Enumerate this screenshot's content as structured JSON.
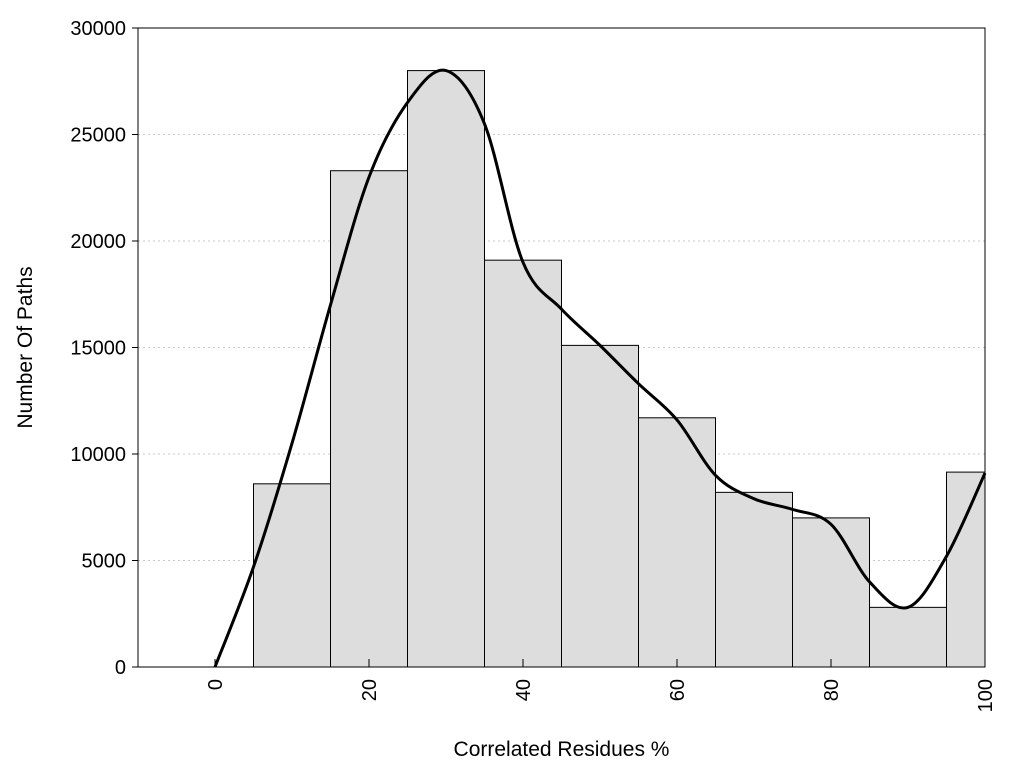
{
  "chart_data": {
    "type": "bar",
    "title": "",
    "xlabel": "Correlated Residues %",
    "ylabel": "Number Of Paths",
    "xlim": [
      -10,
      100
    ],
    "ylim": [
      0,
      30000
    ],
    "x_ticks": [
      0,
      20,
      40,
      60,
      80,
      100
    ],
    "x_tick_labels": [
      "0",
      "20",
      "40",
      "60",
      "80",
      "100"
    ],
    "y_ticks": [
      0,
      5000,
      10000,
      15000,
      20000,
      25000,
      30000
    ],
    "y_tick_labels": [
      "0",
      "5000",
      "10000",
      "15000",
      "20000",
      "25000",
      "30000"
    ],
    "grid": "horizontal dotted",
    "legend": "none",
    "bin_width": 10,
    "categories": [
      "10",
      "20",
      "30",
      "40",
      "50",
      "60",
      "70",
      "80",
      "90",
      "100"
    ],
    "values": [
      8600,
      23300,
      28000,
      19100,
      15100,
      11700,
      8200,
      7000,
      2800,
      9150
    ],
    "curve": {
      "x": [
        0,
        5,
        10,
        15,
        20,
        25,
        30,
        35,
        40,
        45,
        50,
        55,
        60,
        65,
        70,
        75,
        80,
        85,
        90,
        95,
        100
      ],
      "y": [
        0,
        4700,
        10500,
        17000,
        23000,
        26500,
        28000,
        25500,
        19000,
        16800,
        15100,
        13300,
        11600,
        9000,
        7900,
        7400,
        6700,
        4000,
        2800,
        5200,
        9100
      ]
    },
    "colors": {
      "bar_fill": "#dddddd",
      "bar_stroke": "#000000",
      "curve": "#000000",
      "grid": "#c8c8c8"
    }
  }
}
